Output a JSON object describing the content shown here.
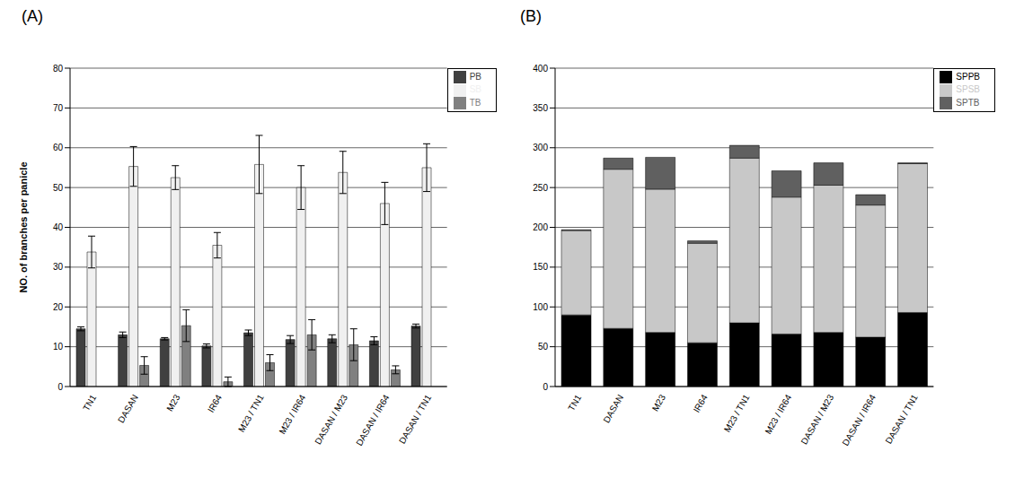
{
  "chart_data": [
    {
      "type": "bar",
      "title": "(A)",
      "y_label": "NO. of branches per panicle",
      "categories": [
        "TN1",
        "DASAN",
        "M23",
        "IR64",
        "M23 / TN1",
        "M23 / IR64",
        "DASAN / M23",
        "DASAN / IR64",
        "DASAN / TN1"
      ],
      "series": [
        {
          "name": "PB",
          "color": "#404040",
          "values": [
            14.5,
            13,
            12,
            10.2,
            13.5,
            11.8,
            12,
            11.5,
            15.2
          ],
          "errors": [
            0.5,
            0.7,
            0.3,
            0.5,
            0.7,
            1,
            1,
            1,
            0.5
          ]
        },
        {
          "name": "SB",
          "color": "#f0f0f0",
          "values": [
            33.8,
            55.3,
            52.5,
            35.5,
            55.8,
            50,
            53.8,
            46,
            55
          ],
          "errors": [
            4,
            5,
            3,
            3.2,
            7.3,
            5.5,
            5.3,
            5.3,
            6
          ]
        },
        {
          "name": "TB",
          "color": "#808080",
          "values": [
            0,
            5.3,
            15.3,
            1.2,
            6,
            13,
            10.5,
            4.2,
            0
          ],
          "errors": [
            0,
            2.2,
            4,
            1.2,
            2,
            3.8,
            4,
            1,
            0
          ]
        }
      ],
      "ylim": [
        0,
        80
      ],
      "yticks": [
        0,
        10,
        20,
        30,
        40,
        50,
        60,
        70,
        80
      ],
      "grid": true,
      "legend": "right"
    },
    {
      "type": "bar",
      "title": "(B)",
      "stacked": true,
      "categories": [
        "TN1",
        "DASAN",
        "M23",
        "IR64",
        "M23 / TN1",
        "M23 / IR64",
        "DASAN / M23",
        "DASAN / IR64",
        "DASAN / TN1"
      ],
      "series": [
        {
          "name": "SPPB",
          "color": "#000000",
          "values": [
            90,
            73,
            68,
            55,
            80,
            66,
            68,
            62,
            93
          ]
        },
        {
          "name": "SPSB",
          "color": "#c8c8c8",
          "values": [
            106,
            200,
            180,
            125,
            207,
            172,
            185,
            166,
            187
          ]
        },
        {
          "name": "SPTB",
          "color": "#606060",
          "values": [
            1,
            14,
            40,
            3,
            16,
            33,
            28,
            13,
            1
          ]
        }
      ],
      "ylim": [
        0,
        400
      ],
      "yticks": [
        0,
        50,
        100,
        150,
        200,
        250,
        300,
        350,
        400
      ],
      "grid": true,
      "legend": "right"
    }
  ]
}
